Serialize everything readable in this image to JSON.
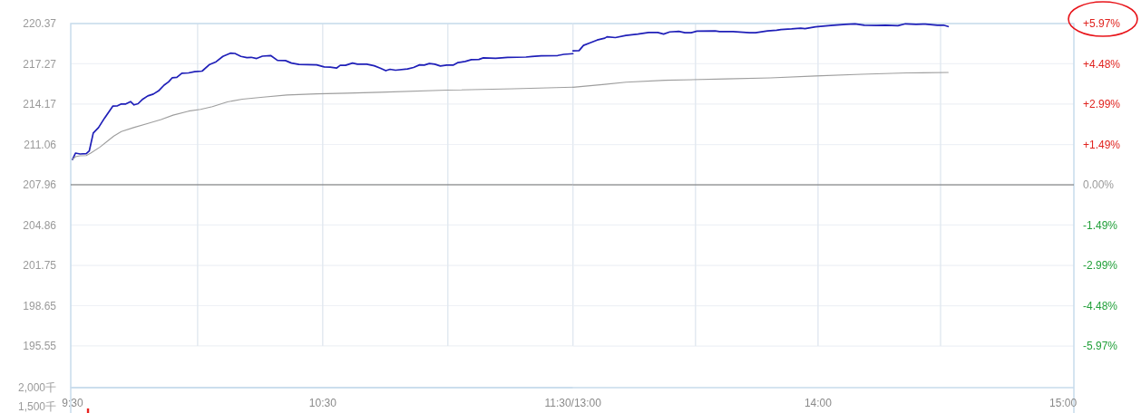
{
  "chart_data": [
    {
      "type": "line",
      "xlim": [
        9.493,
        11.5
      ],
      "xticks": [
        {
          "value": 9.5,
          "label": "9:30"
        },
        {
          "value": 10,
          "label": null
        },
        {
          "value": 10.5,
          "label": "10:30"
        },
        {
          "value": 11,
          "label": null
        },
        {
          "value": 11.5,
          "label": "11:30/13:00"
        }
      ],
      "ylim": [
        192.34,
        220.37
      ],
      "yticks": [
        220.37,
        217.27,
        214.17,
        211.06,
        207.96,
        204.86,
        201.75,
        198.65,
        195.55
      ],
      "grid": true,
      "ref_lines": [
        {
          "axis": "y",
          "value": 207.96,
          "color": "#6e6e6e"
        }
      ],
      "series": [
        {
          "color": "#1f1fb8",
          "x": [
            9.5,
            9.512,
            9.53,
            9.555,
            9.567,
            9.583,
            9.604,
            9.628,
            9.661,
            9.68,
            9.695,
            9.713,
            9.732,
            9.746,
            9.762,
            9.781,
            9.801,
            9.823,
            9.844,
            9.866,
            9.884,
            9.899,
            9.917,
            9.937,
            9.964,
            9.988,
            10.018,
            10.048,
            10.074,
            10.101,
            10.131,
            10.149,
            10.173,
            10.197,
            10.214,
            10.236,
            10.259,
            10.292,
            10.319,
            10.351,
            10.375,
            10.405,
            10.476,
            10.506,
            10.53,
            10.555,
            10.57,
            10.591,
            10.619,
            10.639,
            10.676,
            10.706,
            10.73,
            10.752,
            10.769,
            10.791,
            10.839,
            10.863,
            10.887,
            10.906,
            10.926,
            10.948,
            10.97,
            10.996,
            11.021,
            11.039,
            11.069,
            11.094,
            11.124,
            11.142,
            11.191,
            11.239,
            11.312,
            11.336,
            11.373,
            11.439,
            11.464,
            11.5
          ],
          "values": [
            209.9,
            210.4,
            210.33,
            210.35,
            210.56,
            211.94,
            212.36,
            213.09,
            214.01,
            214.04,
            214.18,
            214.18,
            214.36,
            214.11,
            214.2,
            214.55,
            214.8,
            214.94,
            215.19,
            215.63,
            215.88,
            216.2,
            216.23,
            216.55,
            216.57,
            216.67,
            216.71,
            217.22,
            217.43,
            217.84,
            218.09,
            218.07,
            217.84,
            217.75,
            217.77,
            217.68,
            217.86,
            217.91,
            217.54,
            217.52,
            217.33,
            217.22,
            217.19,
            217.03,
            217.01,
            216.94,
            217.15,
            217.15,
            217.33,
            217.24,
            217.24,
            217.12,
            216.94,
            216.74,
            216.85,
            216.78,
            216.87,
            216.99,
            217.19,
            217.17,
            217.29,
            217.24,
            217.1,
            217.17,
            217.17,
            217.36,
            217.45,
            217.59,
            217.61,
            217.73,
            217.7,
            217.77,
            217.79,
            217.84,
            217.88,
            217.91,
            218.0,
            218.05
          ]
        },
        {
          "color": "#9e9e9e",
          "x": [
            9.5,
            9.512,
            9.53,
            9.555,
            9.573,
            9.61,
            9.64,
            9.665,
            9.695,
            9.744,
            9.805,
            9.854,
            9.902,
            9.964,
            10.012,
            10.059,
            10.119,
            10.179,
            10.262,
            10.357,
            10.476,
            10.597,
            10.728,
            10.996,
            11.263,
            11.5
          ],
          "values": [
            209.9,
            210.12,
            210.19,
            210.21,
            210.4,
            210.86,
            211.32,
            211.71,
            212.06,
            212.36,
            212.7,
            212.98,
            213.32,
            213.63,
            213.76,
            213.97,
            214.34,
            214.55,
            214.7,
            214.87,
            214.96,
            215.01,
            215.08,
            215.24,
            215.35,
            215.47
          ]
        }
      ]
    },
    {
      "type": "line",
      "xlim": [
        13,
        15.044
      ],
      "xticks": [
        {
          "value": 13.5,
          "label": null
        },
        {
          "value": 14,
          "label": "14:00"
        },
        {
          "value": 14.5,
          "label": null
        },
        {
          "value": 15,
          "label": "15:00"
        }
      ],
      "y2lim": [
        -7.51,
        5.97
      ],
      "y2ticks": [
        {
          "value": 5.97,
          "label": "+5.97%"
        },
        {
          "value": 4.48,
          "label": "+4.48%"
        },
        {
          "value": 2.99,
          "label": "+2.99%"
        },
        {
          "value": 1.49,
          "label": "+1.49%"
        },
        {
          "value": 0,
          "label": "0.00%"
        },
        {
          "value": -1.49,
          "label": "-1.49%"
        },
        {
          "value": -2.99,
          "label": "-2.99%"
        },
        {
          "value": -4.48,
          "label": "-4.48%"
        },
        {
          "value": -5.97,
          "label": "-5.97%"
        }
      ],
      "grid": true,
      "ref_lines": [
        {
          "axis": "y2",
          "value": 0,
          "color": "#6e6e6e"
        }
      ],
      "series": [
        {
          "color": "#1f1fb8",
          "axis": "y2",
          "x": [
            13.0,
            13.025,
            13.043,
            13.068,
            13.099,
            13.13,
            13.139,
            13.173,
            13.216,
            13.265,
            13.309,
            13.346,
            13.37,
            13.395,
            13.432,
            13.457,
            13.482,
            13.506,
            13.58,
            13.598,
            13.653,
            13.721,
            13.745,
            13.794,
            13.831,
            13.849,
            13.892,
            13.929,
            13.947,
            13.99,
            14.052,
            14.114,
            14.151,
            14.189,
            14.239,
            14.276,
            14.326,
            14.357,
            14.4,
            14.438,
            14.487,
            14.512,
            14.531
          ],
          "values": [
            4.96,
            4.97,
            5.16,
            5.25,
            5.36,
            5.43,
            5.48,
            5.45,
            5.53,
            5.58,
            5.64,
            5.64,
            5.58,
            5.66,
            5.68,
            5.63,
            5.63,
            5.69,
            5.7,
            5.67,
            5.67,
            5.63,
            5.63,
            5.7,
            5.72,
            5.75,
            5.77,
            5.8,
            5.78,
            5.85,
            5.9,
            5.94,
            5.96,
            5.91,
            5.9,
            5.91,
            5.89,
            5.96,
            5.94,
            5.95,
            5.91,
            5.91,
            5.86
          ]
        },
        {
          "color": "#9e9e9e",
          "axis": "y2",
          "x": [
            13.0,
            13.13,
            13.216,
            13.376,
            13.623,
            13.806,
            13.99,
            14.177,
            14.363,
            14.531
          ],
          "values": [
            3.61,
            3.72,
            3.8,
            3.87,
            3.92,
            3.96,
            4.03,
            4.09,
            4.14,
            4.16
          ]
        }
      ]
    },
    {
      "type": "bar",
      "xlim": [
        9.493,
        11.5
      ],
      "ylim": [
        1330,
        2000
      ],
      "yticks": [
        {
          "value": 2000,
          "label": "2,000千"
        },
        {
          "value": 1500,
          "label": "1,500千"
        }
      ],
      "tick_labels": "y",
      "x": [
        9.562
      ],
      "values": [
        1450
      ],
      "colors": [
        "#e8231f"
      ]
    }
  ]
}
